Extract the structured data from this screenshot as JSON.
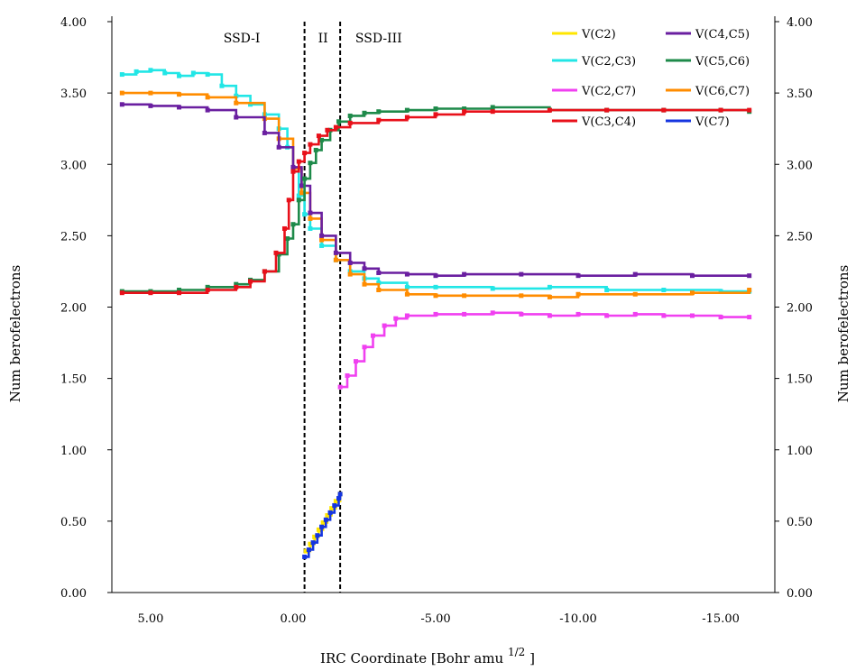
{
  "chart_data": {
    "type": "line",
    "title": "",
    "xlabel": "IRC Coordinate [Bohr amu^1/2]",
    "xlabel_main": "IRC Coordinate [Bohr amu",
    "xlabel_sup": "1/2",
    "xlabel_tail": "]",
    "ylabel": "Number of electrons",
    "ylabel_display": "Num berofelectrons",
    "xlim": [
      6.2,
      -16.2
    ],
    "ylim": [
      0.0,
      4.0
    ],
    "x_reversed": true,
    "xticks": [
      5,
      0,
      -5,
      -10,
      -15
    ],
    "xtick_labels": [
      "5.00",
      "0.00",
      "-5.00",
      "-10.00",
      "-15.00"
    ],
    "yticks": [
      0,
      0.5,
      1.0,
      1.5,
      2.0,
      2.5,
      3.0,
      3.5,
      4.0
    ],
    "ytick_labels": [
      "0.00",
      "0.50",
      "1.00",
      "1.50",
      "2.00",
      "2.50",
      "3.00",
      "3.50",
      "4.00"
    ],
    "legend_position": "top-right",
    "regions": {
      "boundaries": [
        -0.4,
        -1.65
      ],
      "labels": [
        "SSD-I",
        "II",
        "SSD-III"
      ],
      "label_x": [
        1.8,
        -1.05,
        -3.0
      ]
    },
    "series": [
      {
        "name": "V(C2)",
        "label_display": "V(C2)",
        "color": "#FFE600",
        "x": [
          -0.45,
          -0.6,
          -0.75,
          -0.9,
          -1.05,
          -1.2,
          -1.35,
          -1.5,
          -1.65
        ],
        "y": [
          0.29,
          0.34,
          0.39,
          0.44,
          0.49,
          0.54,
          0.59,
          0.64,
          0.69
        ]
      },
      {
        "name": "V(C4,C5)",
        "label_display": "V(C4,C5)",
        "color": "#6A1FA0",
        "x": [
          6,
          5,
          4,
          3,
          2,
          1,
          0.5,
          0,
          -0.3,
          -0.6,
          -1.0,
          -1.5,
          -2.0,
          -2.5,
          -3.0,
          -4.0,
          -5.0,
          -6.0,
          -8.0,
          -10.0,
          -12.0,
          -14.0,
          -16.0
        ],
        "y": [
          3.42,
          3.41,
          3.4,
          3.38,
          3.33,
          3.22,
          3.12,
          2.98,
          2.85,
          2.66,
          2.5,
          2.38,
          2.31,
          2.27,
          2.24,
          2.23,
          2.22,
          2.23,
          2.23,
          2.22,
          2.23,
          2.22,
          2.22
        ]
      },
      {
        "name": "V(C2,C3)",
        "label_display": "V(C2,C3)",
        "color": "#22E6E6",
        "x": [
          6,
          5.5,
          5,
          4.5,
          4,
          3.5,
          3,
          2.5,
          2,
          1.5,
          1,
          0.5,
          0.2,
          0,
          -0.2,
          -0.4,
          -0.6,
          -1.0,
          -1.5,
          -2.0,
          -2.5,
          -3.0,
          -4.0,
          -5.0,
          -7.0,
          -9.0,
          -11.0,
          -13.0,
          -15.0,
          -16.0
        ],
        "y": [
          3.63,
          3.65,
          3.66,
          3.64,
          3.62,
          3.64,
          3.63,
          3.55,
          3.48,
          3.42,
          3.35,
          3.25,
          3.12,
          2.95,
          2.78,
          2.65,
          2.55,
          2.43,
          2.33,
          2.25,
          2.2,
          2.17,
          2.14,
          2.14,
          2.13,
          2.14,
          2.12,
          2.12,
          2.11,
          2.11
        ]
      },
      {
        "name": "V(C5,C6)",
        "label_display": "V(C5,C6)",
        "color": "#1E8A4A",
        "x": [
          6,
          5,
          4,
          3,
          2,
          1.5,
          1,
          0.5,
          0.2,
          0,
          -0.2,
          -0.4,
          -0.6,
          -0.8,
          -1.0,
          -1.3,
          -1.6,
          -2.0,
          -2.5,
          -3.0,
          -4.0,
          -5.0,
          -6.0,
          -7.0,
          -9.0,
          -11.0,
          -13.0,
          -15.0,
          -16.0
        ],
        "y": [
          2.11,
          2.11,
          2.12,
          2.14,
          2.16,
          2.19,
          2.25,
          2.37,
          2.48,
          2.58,
          2.75,
          2.9,
          3.01,
          3.1,
          3.17,
          3.24,
          3.3,
          3.34,
          3.36,
          3.37,
          3.38,
          3.39,
          3.39,
          3.4,
          3.38,
          3.38,
          3.38,
          3.38,
          3.37
        ]
      },
      {
        "name": "V(C2,C7)",
        "label_display": "V(C2,C7)",
        "color": "#F040F0",
        "x": [
          -1.65,
          -1.9,
          -2.2,
          -2.5,
          -2.8,
          -3.2,
          -3.6,
          -4.0,
          -5.0,
          -6.0,
          -7.0,
          -8.0,
          -9.0,
          -10.0,
          -11.0,
          -12.0,
          -13.0,
          -14.0,
          -15.0,
          -16.0
        ],
        "y": [
          1.44,
          1.52,
          1.62,
          1.72,
          1.8,
          1.87,
          1.92,
          1.94,
          1.95,
          1.95,
          1.96,
          1.95,
          1.94,
          1.95,
          1.94,
          1.95,
          1.94,
          1.94,
          1.93,
          1.93
        ]
      },
      {
        "name": "V(C6,C7)",
        "label_display": "V(C6,C7)",
        "color": "#FF8C00",
        "x": [
          6,
          5,
          4,
          3,
          2,
          1,
          0.5,
          0,
          -0.3,
          -0.6,
          -1.0,
          -1.5,
          -2.0,
          -2.5,
          -3.0,
          -4.0,
          -5.0,
          -6.0,
          -8.0,
          -9.0,
          -10.0,
          -12.0,
          -14.0,
          -16.0
        ],
        "y": [
          3.5,
          3.5,
          3.49,
          3.47,
          3.43,
          3.32,
          3.18,
          2.97,
          2.8,
          2.62,
          2.47,
          2.33,
          2.23,
          2.16,
          2.12,
          2.09,
          2.08,
          2.08,
          2.08,
          2.07,
          2.09,
          2.09,
          2.1,
          2.12
        ]
      },
      {
        "name": "V(C3,C4)",
        "label_display": "V(C3,C4)",
        "color": "#E8101A",
        "x": [
          6,
          5,
          4,
          3,
          2,
          1.5,
          1,
          0.6,
          0.3,
          0.15,
          0,
          -0.2,
          -0.4,
          -0.6,
          -0.9,
          -1.2,
          -1.5,
          -2.0,
          -3.0,
          -4.0,
          -5.0,
          -6.0,
          -7.0,
          -9.0,
          -11.0,
          -13.0,
          -15.0,
          -16.0
        ],
        "y": [
          2.1,
          2.1,
          2.1,
          2.12,
          2.14,
          2.18,
          2.25,
          2.38,
          2.55,
          2.75,
          2.95,
          3.02,
          3.08,
          3.14,
          3.2,
          3.24,
          3.26,
          3.29,
          3.31,
          3.33,
          3.35,
          3.37,
          3.37,
          3.38,
          3.38,
          3.38,
          3.38,
          3.38
        ]
      },
      {
        "name": "V(C7)",
        "label_display": "V(C7)",
        "color": "#1535E0",
        "x": [
          -0.4,
          -0.55,
          -0.7,
          -0.85,
          -1.0,
          -1.15,
          -1.3,
          -1.45,
          -1.6,
          -1.65
        ],
        "y": [
          0.25,
          0.3,
          0.35,
          0.4,
          0.46,
          0.51,
          0.56,
          0.61,
          0.66,
          0.69
        ]
      }
    ],
    "legend_order": [
      "V(C2)",
      "V(C4,C5)",
      "V(C2,C3)",
      "V(C5,C6)",
      "V(C2,C7)",
      "V(C6,C7)",
      "V(C3,C4)",
      "V(C7)"
    ]
  }
}
